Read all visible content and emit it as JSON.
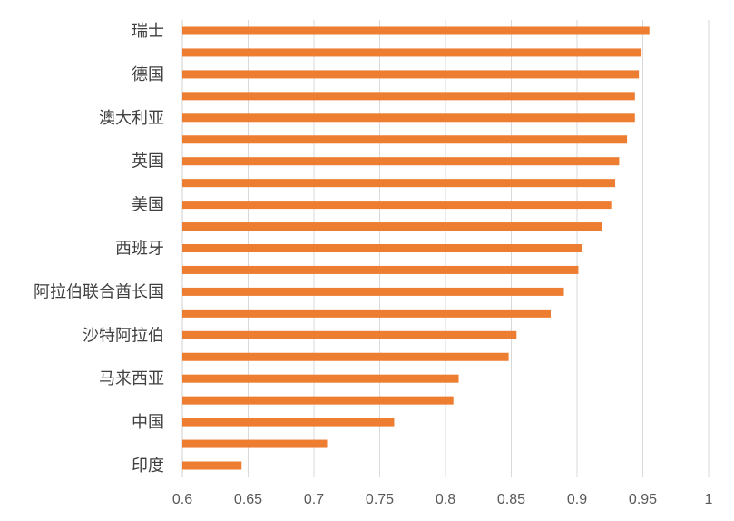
{
  "chart_data": {
    "type": "bar",
    "orientation": "horizontal",
    "bar_color": "#ED7D31",
    "grid_color": "#D9D9D9",
    "grid": true,
    "categories": [
      "瑞士",
      "",
      "德国",
      "",
      "澳大利亚",
      "",
      "英国",
      "",
      "美国",
      "",
      "西班牙",
      "",
      "阿拉伯联合酋长国",
      "",
      "沙特阿拉伯",
      "",
      "马来西亚",
      "",
      "中国",
      "",
      "印度"
    ],
    "values": [
      0.955,
      0.949,
      0.947,
      0.944,
      0.944,
      0.938,
      0.932,
      0.929,
      0.926,
      0.919,
      0.904,
      0.901,
      0.89,
      0.88,
      0.854,
      0.848,
      0.81,
      0.806,
      0.761,
      0.71,
      0.645
    ],
    "xlim": [
      0.6,
      1.0
    ],
    "xticks": [
      "0.6",
      "0.65",
      "0.7",
      "0.75",
      "0.8",
      "0.85",
      "0.9",
      "0.95",
      "1"
    ]
  }
}
